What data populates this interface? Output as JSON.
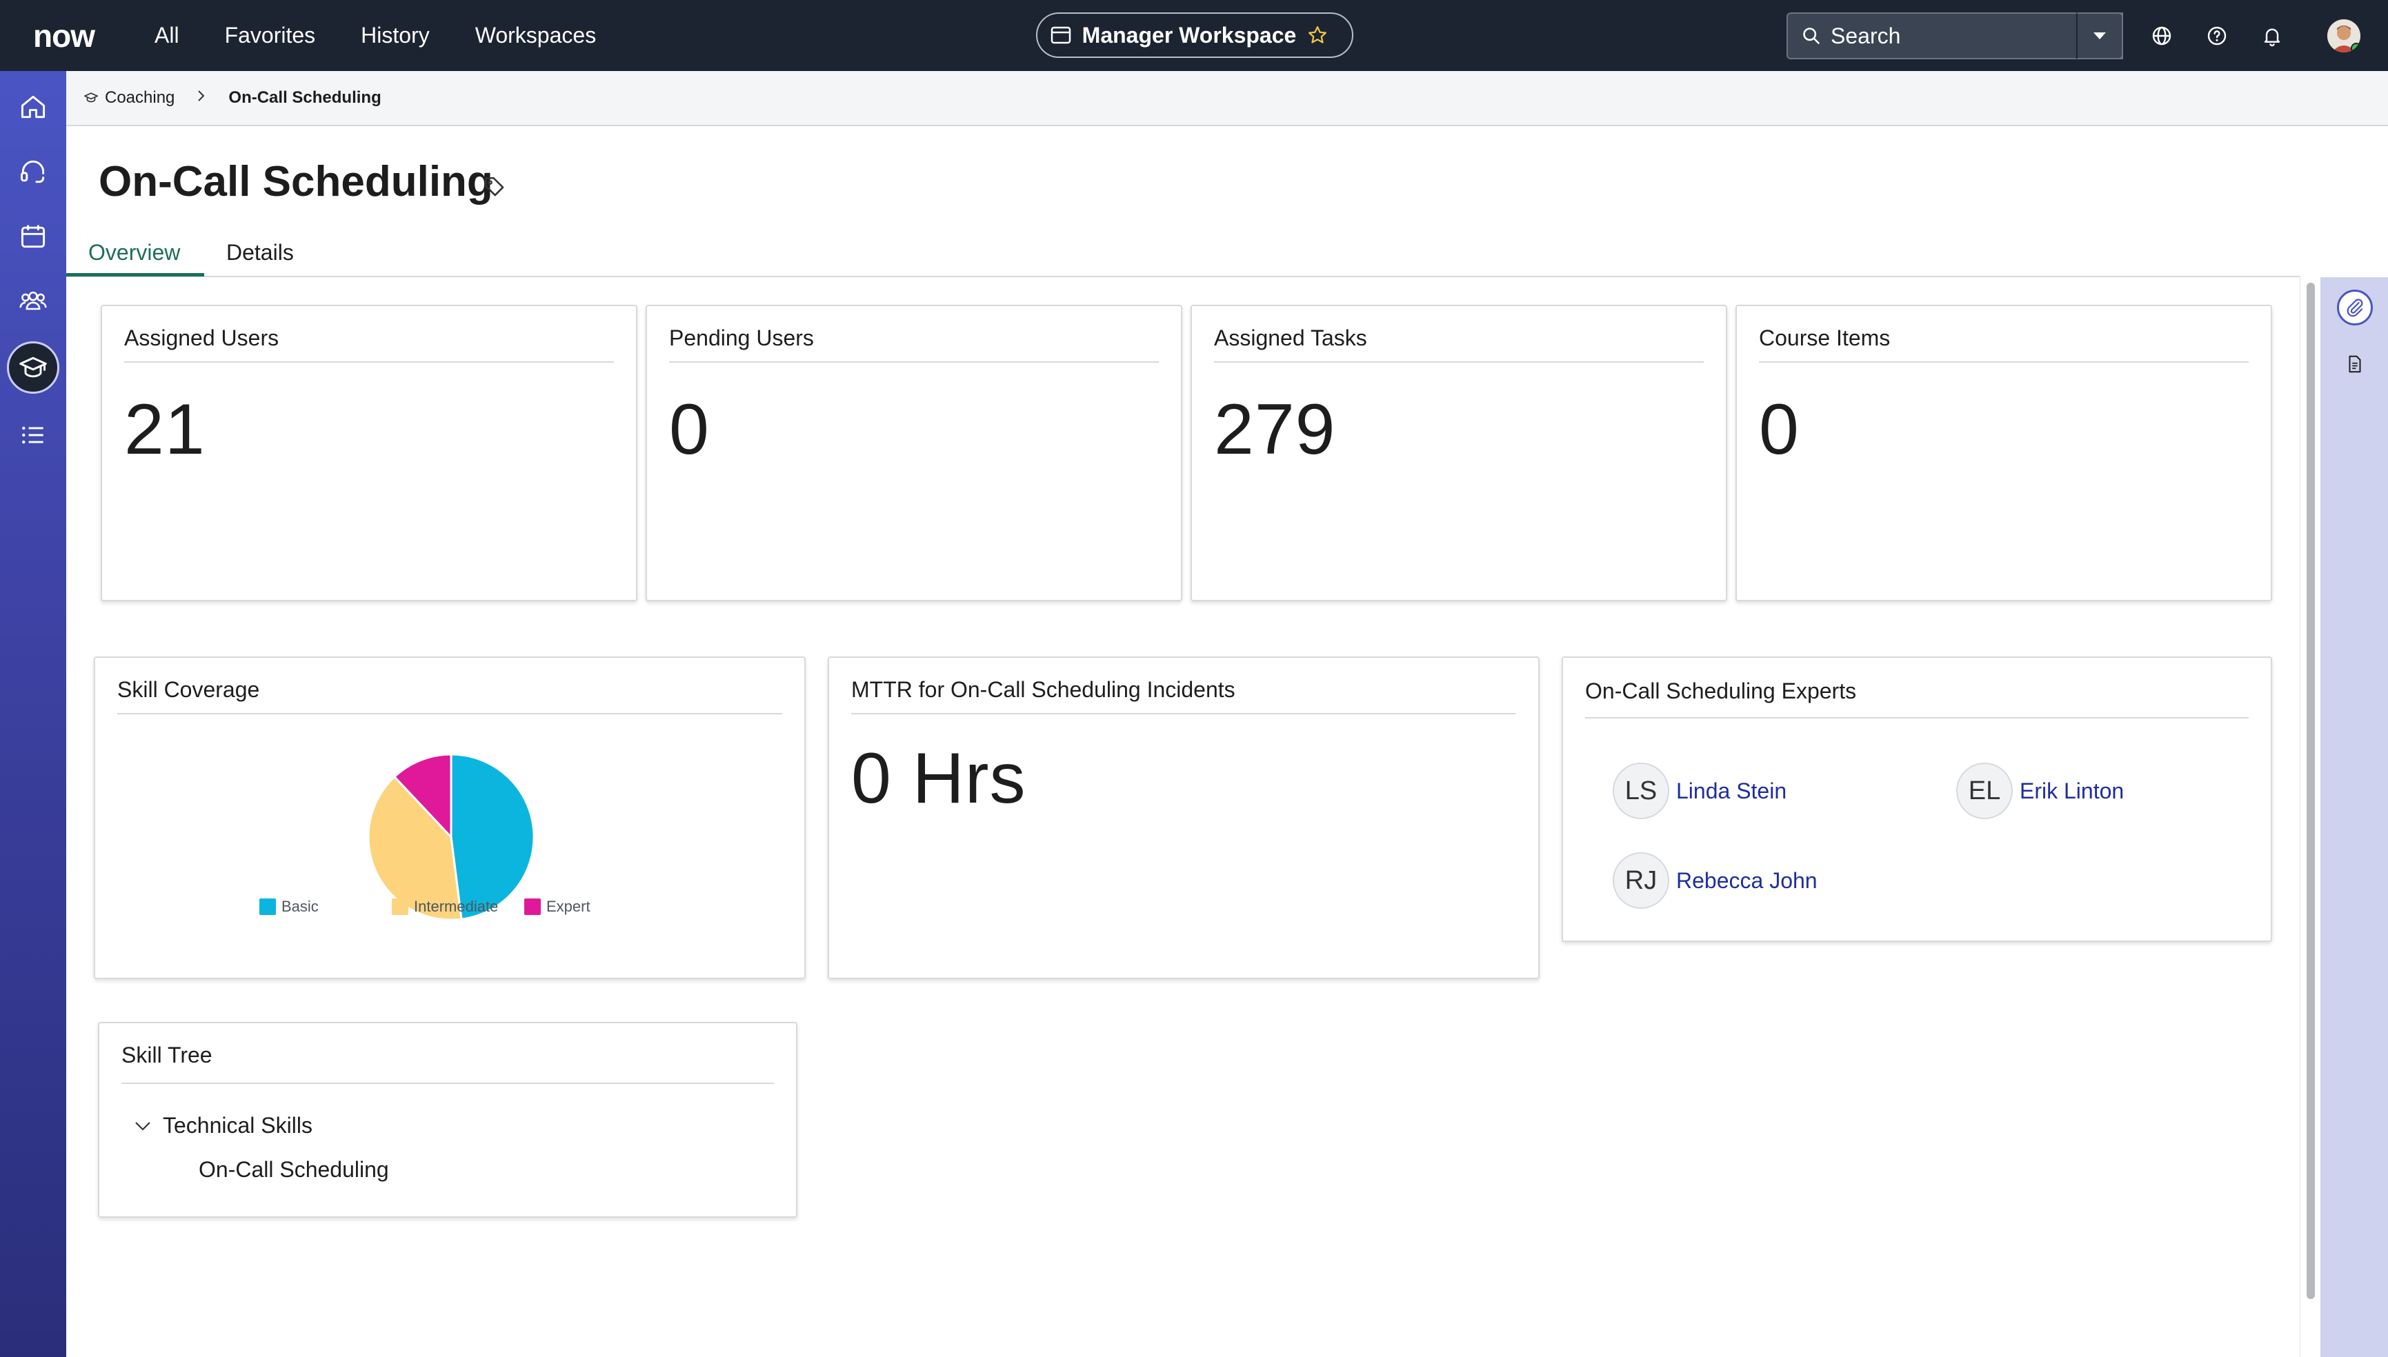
{
  "topbar": {
    "logo": "now",
    "nav": [
      "All",
      "Favorites",
      "History",
      "Workspaces"
    ],
    "workspace": "Manager Workspace",
    "search_placeholder": "Search"
  },
  "breadcrumb": {
    "parent": "Coaching",
    "current": "On-Call Scheduling"
  },
  "page": {
    "title": "On-Call Scheduling",
    "tabs": [
      "Overview",
      "Details"
    ]
  },
  "kpis": [
    {
      "label": "Assigned Users",
      "value": "21"
    },
    {
      "label": "Pending Users",
      "value": "0"
    },
    {
      "label": "Assigned Tasks",
      "value": "279"
    },
    {
      "label": "Course Items",
      "value": "0"
    }
  ],
  "skill_coverage": {
    "title": "Skill Coverage",
    "chart_data": {
      "type": "pie",
      "title": "Skill Coverage",
      "categories": [
        "Basic",
        "Intermediate",
        "Expert"
      ],
      "values": [
        48,
        40,
        12
      ],
      "colors": [
        "#0bb5dd",
        "#fdd37d",
        "#e0199a"
      ],
      "legend": "bottom"
    }
  },
  "mttr": {
    "title": "MTTR for On-Call Scheduling Incidents",
    "value": "0 Hrs"
  },
  "experts": {
    "title": "On-Call Scheduling Experts",
    "people": [
      {
        "initials": "LS",
        "name": "Linda Stein"
      },
      {
        "initials": "EL",
        "name": "Erik Linton"
      },
      {
        "initials": "RJ",
        "name": "Rebecca John"
      }
    ]
  },
  "skill_tree": {
    "title": "Skill Tree",
    "root": "Technical Skills",
    "child": "On-Call Scheduling"
  },
  "colors": {
    "topbar": "#1c2431",
    "accent_tab": "#1c6f57",
    "link": "#1f2e9c",
    "rail": "#4a55c4"
  }
}
